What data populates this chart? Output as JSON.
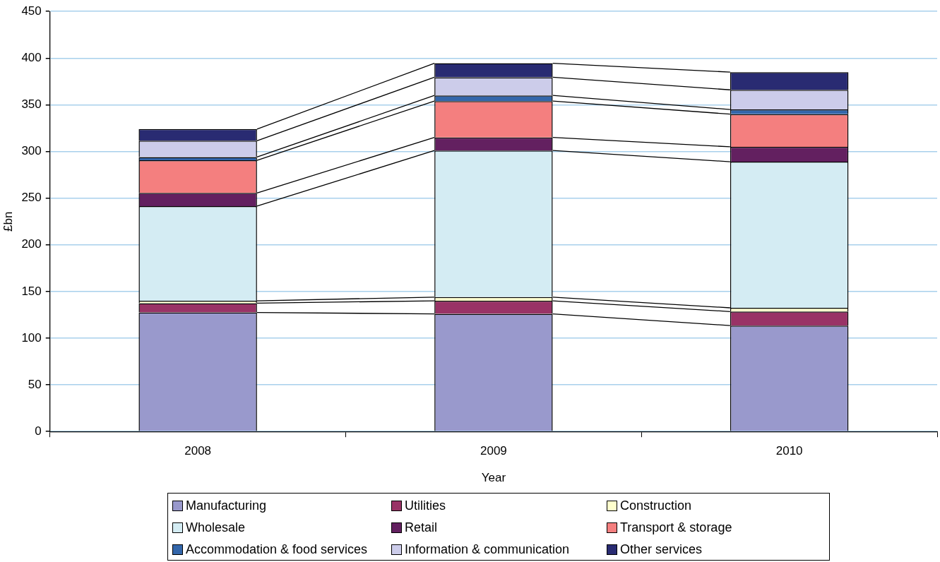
{
  "chart_data": {
    "type": "bar",
    "stacked": true,
    "xlabel": "Year",
    "ylabel": "£bn",
    "categories": [
      "2008",
      "2009",
      "2010"
    ],
    "ylim": [
      0,
      450
    ],
    "yticks": [
      0,
      50,
      100,
      150,
      200,
      250,
      300,
      350,
      400,
      450
    ],
    "grid": "y",
    "legend": "bottom",
    "series": [
      {
        "name": "Manufacturing",
        "color": "#9999cc",
        "values": [
          127.5,
          126,
          113.5
        ]
      },
      {
        "name": "Utilities",
        "color": "#993366",
        "values": [
          10,
          14,
          15
        ]
      },
      {
        "name": "Construction",
        "color": "#ffffcc",
        "values": [
          2.5,
          4,
          4
        ]
      },
      {
        "name": "Wholesale",
        "color": "#d4ecf3",
        "values": [
          101.5,
          157,
          156.5
        ]
      },
      {
        "name": "Retail",
        "color": "#632060",
        "values": [
          14,
          14,
          16
        ]
      },
      {
        "name": "Transport & storage",
        "color": "#f47f7f",
        "values": [
          35,
          39,
          35
        ]
      },
      {
        "name": "Accommodation & food services",
        "color": "#3366aa",
        "values": [
          3.5,
          6,
          5
        ]
      },
      {
        "name": "Information & communication",
        "color": "#ccccea",
        "values": [
          17.5,
          19.5,
          21
        ]
      },
      {
        "name": "Other services",
        "color": "#292b72",
        "values": [
          12.5,
          15,
          19
        ]
      }
    ]
  }
}
